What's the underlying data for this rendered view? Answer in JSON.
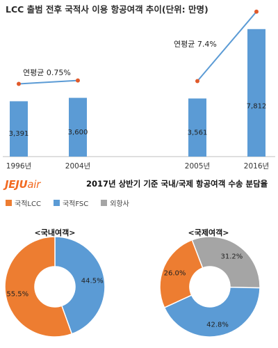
{
  "chart_data": [
    {
      "type": "bar",
      "title": "LCC 출범 전후 국적사 이용 항공여객 추이(단위: 만명)",
      "categories": [
        "1996년",
        "2004년",
        "2005년",
        "2016년"
      ],
      "values": [
        3391,
        3600,
        3561,
        7812
      ],
      "value_labels": [
        "3,391",
        "3,600",
        "3,561",
        "7,812"
      ],
      "ylim": [
        0,
        8400
      ],
      "annotations": [
        "연평균 0.75%",
        "연평균 7.4%"
      ],
      "bar_color": "#5b9bd5",
      "trend_color": "#5b9bd5",
      "marker_color": "#e05a2b",
      "grid": false
    },
    {
      "type": "pie",
      "title": "2017년 상반기 기준 국내/국제 항공여객 수송 분담율",
      "legend": [
        {
          "name": "국적LCC",
          "color": "#ed7d31"
        },
        {
          "name": "국적FSC",
          "color": "#5b9bd5"
        },
        {
          "name": "외항사",
          "color": "#a5a5a5"
        }
      ],
      "pies": [
        {
          "label": "<국내여객>",
          "slices": [
            {
              "name": "국적FSC",
              "value": 44.5,
              "text": "44.5%",
              "color": "#5b9bd5"
            },
            {
              "name": "국적LCC",
              "value": 55.5,
              "text": "55.5%",
              "color": "#ed7d31"
            }
          ]
        },
        {
          "label": "<국제여객>",
          "slices": [
            {
              "name": "외항사",
              "value": 31.2,
              "text": "31.2%",
              "color": "#a5a5a5"
            },
            {
              "name": "국적FSC",
              "value": 42.8,
              "text": "42.8%",
              "color": "#5b9bd5"
            },
            {
              "name": "국적LCC",
              "value": 26.0,
              "text": "26.0%",
              "color": "#ed7d31"
            }
          ]
        }
      ]
    }
  ],
  "brand": {
    "bold": "JEJU",
    "italic": "air",
    "color": "#f26a21"
  }
}
